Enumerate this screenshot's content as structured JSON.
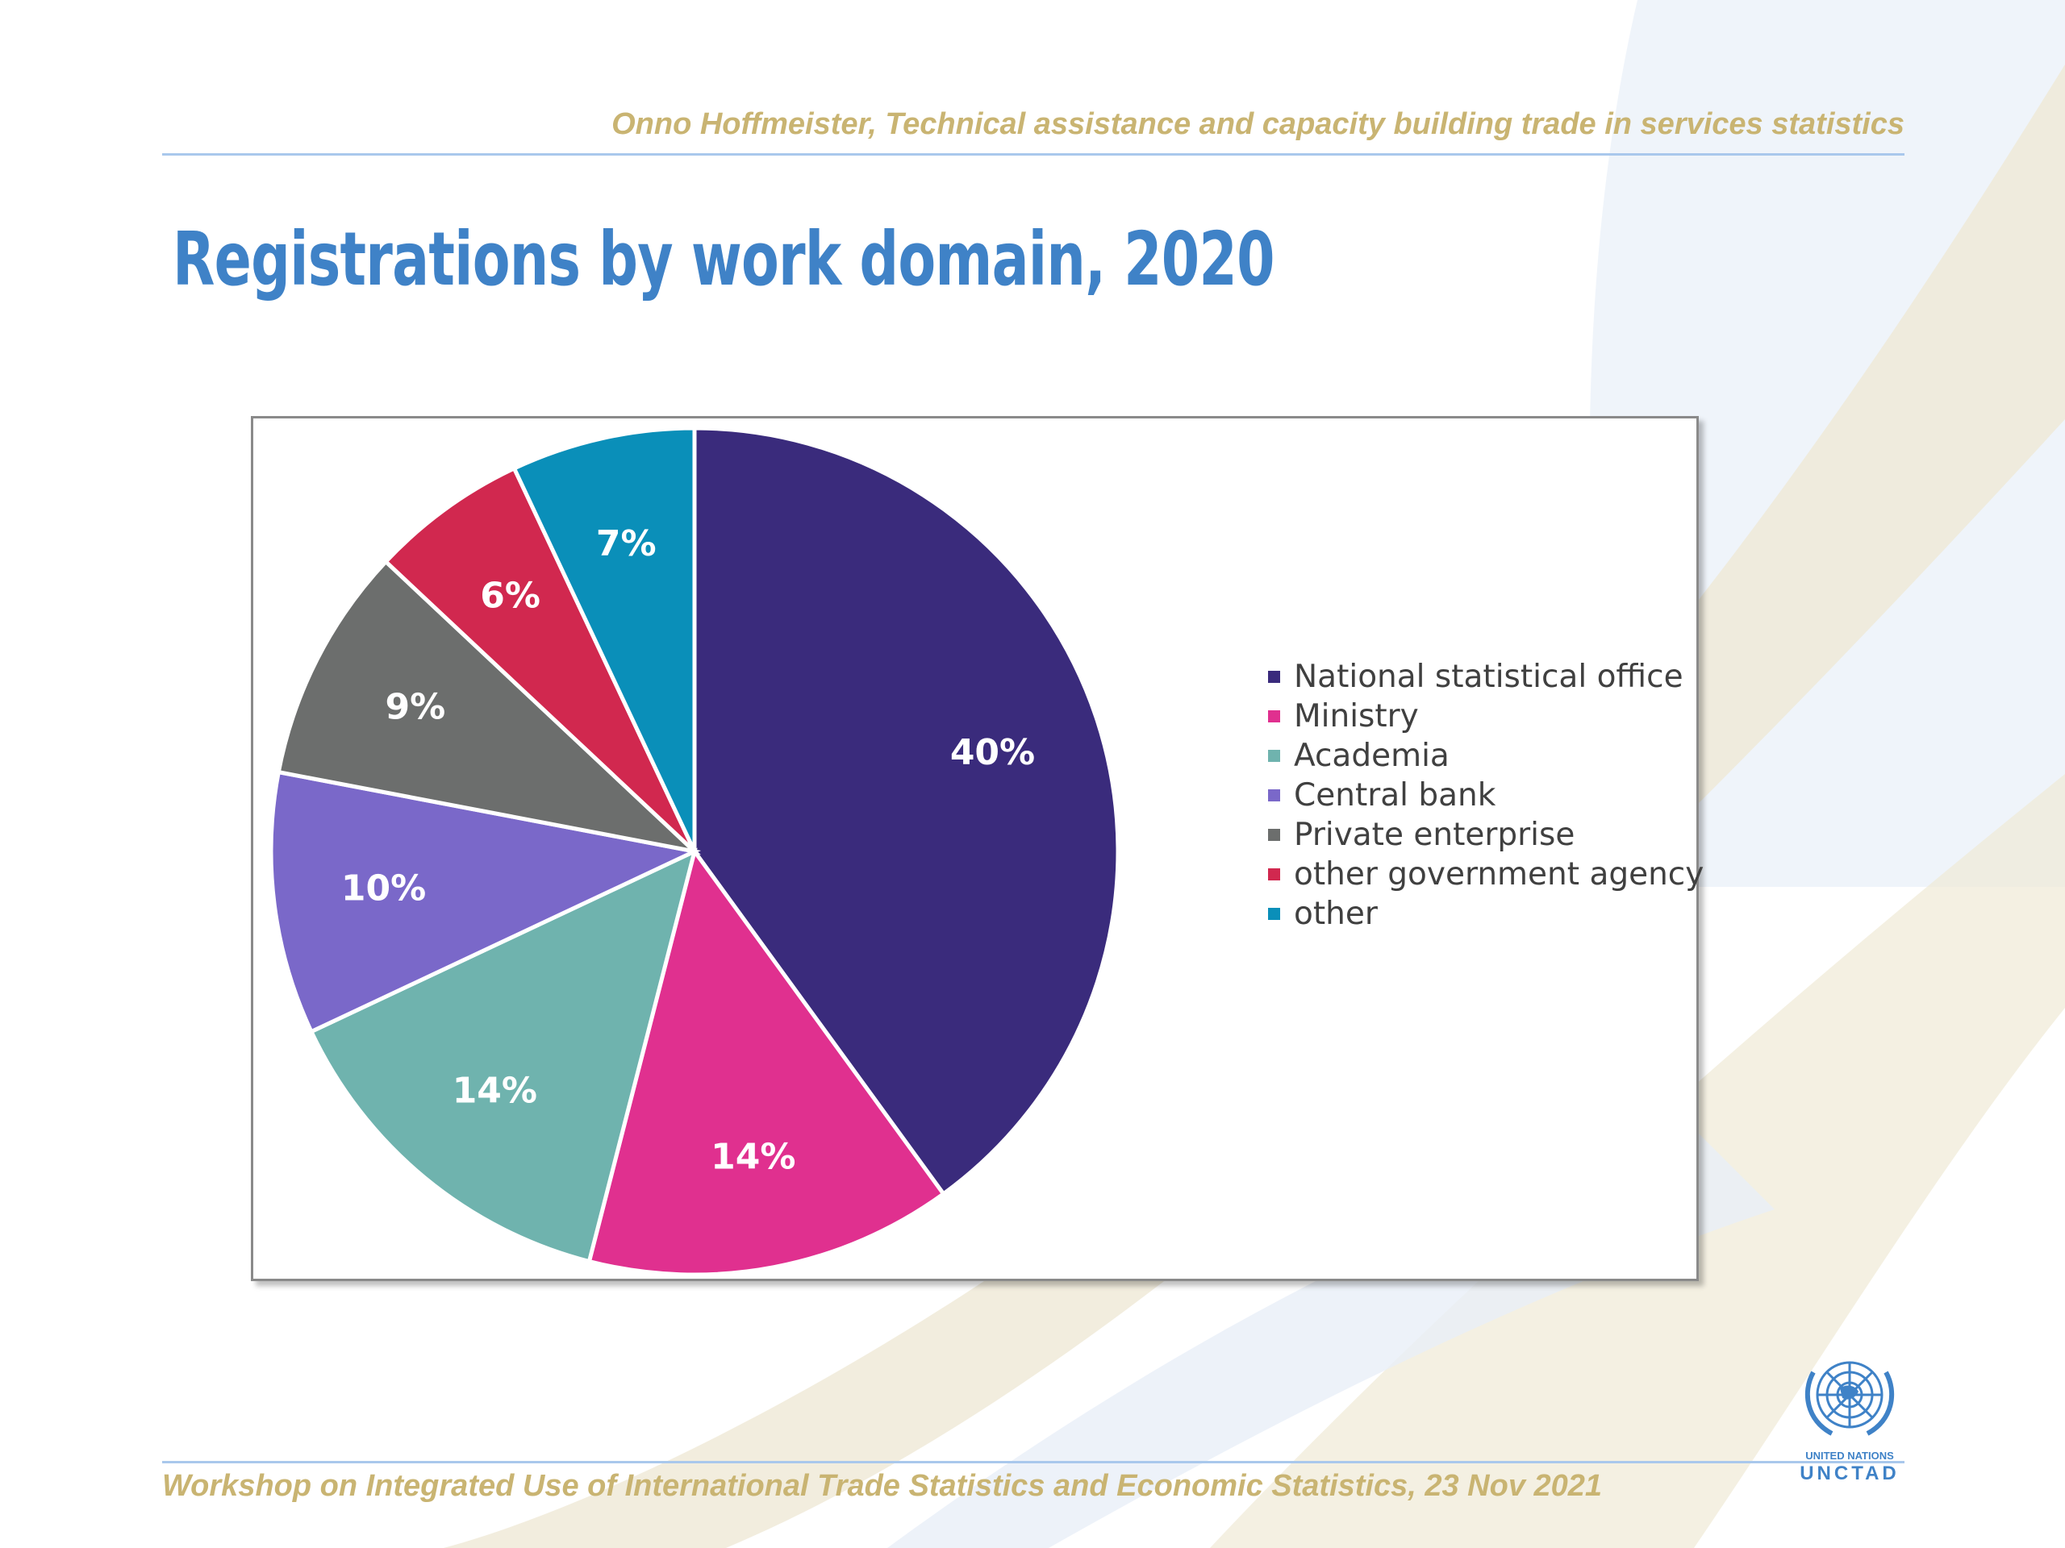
{
  "header": {
    "subtitle": "Onno Hoffmeister, Technical assistance and capacity building trade in services statistics"
  },
  "slide": {
    "title": "Registrations by work domain, 2020"
  },
  "chart_data": {
    "type": "pie",
    "title": "Registrations by work domain, 2020",
    "legend_position": "right",
    "slices": [
      {
        "name": "National statistical office",
        "value": 40,
        "label": "40%",
        "color": "#3a2b7c"
      },
      {
        "name": "Ministry",
        "value": 14,
        "label": "14%",
        "color": "#e0308f"
      },
      {
        "name": "Academia",
        "value": 14,
        "label": "14%",
        "color": "#6fb3ae"
      },
      {
        "name": "Central bank",
        "value": 10,
        "label": "10%",
        "color": "#7a68c9"
      },
      {
        "name": "Private enterprise",
        "value": 9,
        "label": "9%",
        "color": "#6c6e6d"
      },
      {
        "name": "other government agency",
        "value": 6,
        "label": "6%",
        "color": "#d1284f"
      },
      {
        "name": "other",
        "value": 7,
        "label": "7%",
        "color": "#0a8fb9"
      }
    ]
  },
  "footer": {
    "text": "Workshop on Integrated Use of International Trade Statistics and Economic Statistics, 23 Nov 2021"
  },
  "logo": {
    "line1": "UNITED NATIONS",
    "line2": "UNCTAD",
    "icon": "un-emblem-icon"
  },
  "colors": {
    "title": "#3f82c7",
    "header_footer_text": "#c9b472",
    "rule": "#a9c8ec"
  }
}
